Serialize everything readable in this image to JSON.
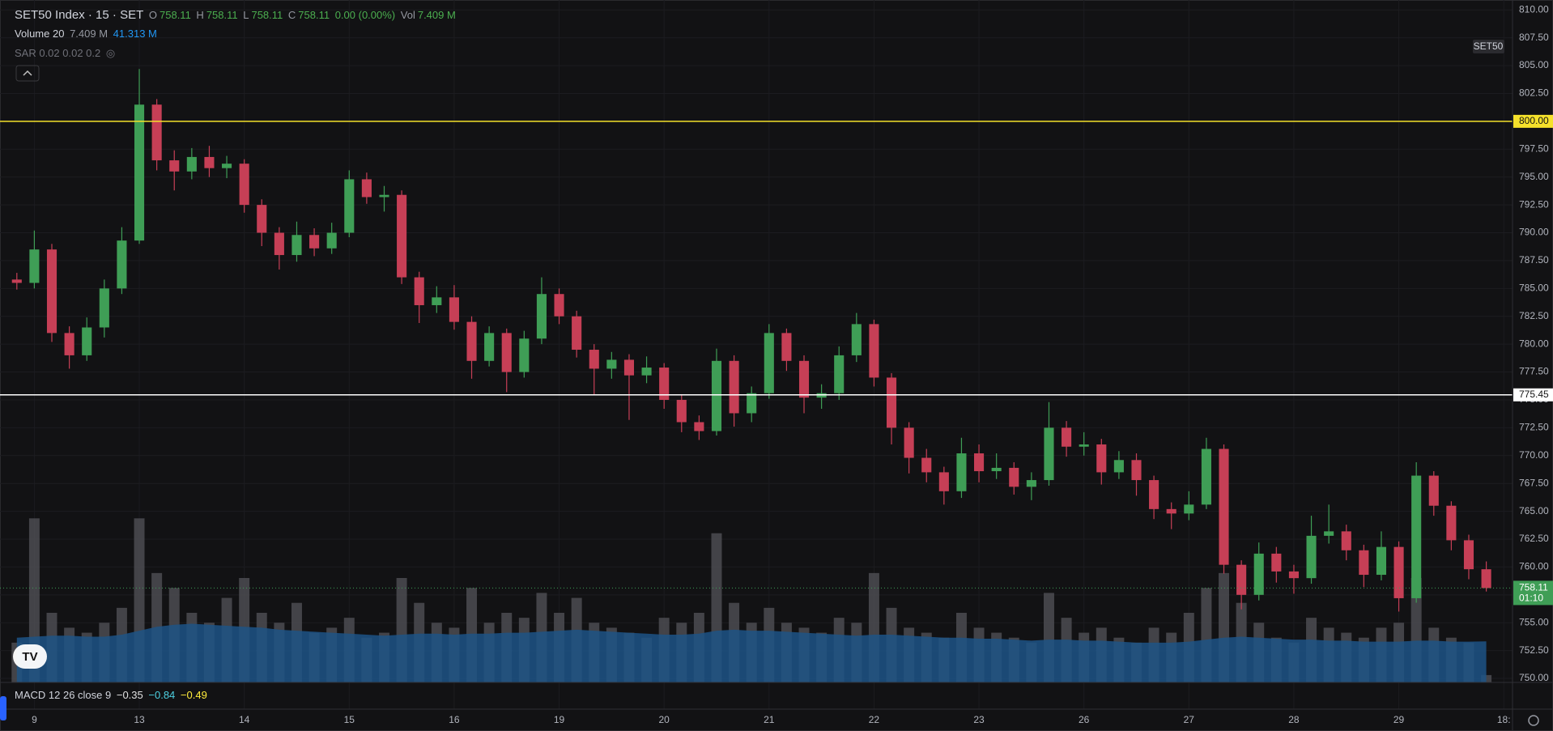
{
  "chart_data": {
    "type": "candlestick",
    "title": "SET50 Index · 15 · SET",
    "ohlc_labels": [
      "O",
      "H",
      "L",
      "C"
    ],
    "ohlc_values": [
      758.11,
      758.11,
      758.11,
      758.11
    ],
    "change": "0.00 (0.00%)",
    "vol_label": "Vol",
    "vol_value": "7.409 M",
    "indicators": [
      {
        "name": "Volume 20",
        "values": [
          "7.409 M",
          "41.313 M"
        ]
      },
      {
        "name": "SAR 0.02 0.02 0.2",
        "values": []
      }
    ],
    "macd": {
      "name": "MACD 12 26 close 9",
      "values": [
        "−0.35",
        "−0.84",
        "−0.49"
      ]
    },
    "badge": "SET50",
    "up_color": "#3f9e56",
    "down_color": "#c63f56",
    "volume_color": "#505055",
    "volume_ma_color": "#1d5486",
    "grid": true,
    "ylim": [
      749.64,
      810.89
    ],
    "yticks": [
      {
        "value": 750,
        "label": "750.00"
      },
      {
        "value": 752.5,
        "label": "752.50"
      },
      {
        "value": 755,
        "label": "755.00"
      },
      {
        "value": 757.5,
        "label": "757.50"
      },
      {
        "value": 760,
        "label": "760.00"
      },
      {
        "value": 762.5,
        "label": "762.50"
      },
      {
        "value": 765,
        "label": "765.00"
      },
      {
        "value": 767.5,
        "label": "767.50"
      },
      {
        "value": 770,
        "label": "770.00"
      },
      {
        "value": 772.5,
        "label": "772.50"
      },
      {
        "value": 775,
        "label": "775.00"
      },
      {
        "value": 777.5,
        "label": "777.50"
      },
      {
        "value": 780,
        "label": "780.00"
      },
      {
        "value": 782.5,
        "label": "782.50"
      },
      {
        "value": 785,
        "label": "785.00"
      },
      {
        "value": 787.5,
        "label": "787.50"
      },
      {
        "value": 790,
        "label": "790.00"
      },
      {
        "value": 792.5,
        "label": "792.50"
      },
      {
        "value": 795,
        "label": "795.00"
      },
      {
        "value": 797.5,
        "label": "797.50"
      },
      {
        "value": 800,
        "label": "800.00"
      },
      {
        "value": 802.5,
        "label": "802.50"
      },
      {
        "value": 805,
        "label": "805.00"
      },
      {
        "value": 807.5,
        "label": "807.50"
      },
      {
        "value": 810,
        "label": "810.00"
      }
    ],
    "xlim": [
      -0.5,
      85.5
    ],
    "xticks": [
      {
        "value": 1,
        "label": "9"
      },
      {
        "value": 7,
        "label": "13"
      },
      {
        "value": 13,
        "label": "14"
      },
      {
        "value": 19,
        "label": "15"
      },
      {
        "value": 25,
        "label": "16"
      },
      {
        "value": 31,
        "label": "19"
      },
      {
        "value": 37,
        "label": "20"
      },
      {
        "value": 43,
        "label": "21"
      },
      {
        "value": 49,
        "label": "22"
      },
      {
        "value": 55,
        "label": "23"
      },
      {
        "value": 61,
        "label": "26"
      },
      {
        "value": 67,
        "label": "27"
      },
      {
        "value": 73,
        "label": "28"
      },
      {
        "value": 79,
        "label": "29"
      },
      {
        "value": 85,
        "label": "18:"
      }
    ],
    "hlines": [
      {
        "value": 800,
        "label": "800.00",
        "color": "#f5e12b"
      },
      {
        "value": 775.45,
        "label": "775.45",
        "color": "#ffffff"
      }
    ],
    "last_price": {
      "value": 758.11,
      "label": "758.11",
      "countdown": "01:10",
      "color": "#3f9e56"
    },
    "open": [
      785.8,
      785.5,
      788.5,
      781,
      779,
      781.5,
      785,
      789.3,
      801.5,
      796.5,
      795.5,
      796.8,
      795.8,
      796.2,
      792.5,
      790,
      788,
      789.8,
      788.6,
      790,
      794.8,
      793.2,
      793.4,
      786,
      783.5,
      784.2,
      782,
      778.5,
      781,
      777.5,
      780.5,
      784.5,
      782.5,
      779.5,
      777.8,
      778.6,
      777.2,
      777.9,
      775,
      773,
      772.2,
      778.5,
      773.8,
      775.6,
      781,
      778.5,
      775.2,
      775.6,
      779,
      781.8,
      777,
      772.5,
      769.8,
      768.5,
      766.8,
      770.2,
      768.6,
      768.9,
      767.2,
      767.8,
      772.5,
      770.8,
      771,
      768.5,
      769.6,
      767.8,
      765.2,
      764.8,
      765.6,
      770.6,
      760.2,
      757.5,
      761.2,
      759.6,
      759,
      762.8,
      763.2,
      761.5,
      759.3,
      761.8,
      757.2,
      768.2,
      765.5,
      762.4,
      759.8
    ],
    "high": [
      786.4,
      790.2,
      789,
      781.6,
      782.4,
      785.8,
      790.5,
      804.7,
      802,
      797.4,
      797.6,
      797.8,
      796.9,
      796.6,
      793,
      790.5,
      791,
      790.4,
      790.9,
      795.6,
      795.4,
      794.2,
      793.8,
      786.5,
      785.2,
      785.3,
      782.5,
      781.6,
      781.4,
      781.2,
      786,
      785,
      783,
      780,
      779.3,
      779.1,
      778.9,
      778.3,
      775.5,
      773.6,
      779.6,
      779,
      776.2,
      781.8,
      781.4,
      779,
      776.4,
      779.8,
      782.8,
      782.2,
      777.4,
      773,
      770.6,
      769,
      771.6,
      771,
      770.2,
      769.4,
      768.5,
      774.8,
      773.1,
      772.1,
      771.5,
      770.4,
      770.2,
      768.2,
      765.8,
      766.8,
      771.6,
      771,
      760.6,
      762.2,
      761.8,
      760.2,
      764.6,
      765.6,
      763.8,
      762,
      763.2,
      762.3,
      769.4,
      768.6,
      765.9,
      762.9,
      760.5
    ],
    "low": [
      784.9,
      785,
      780.2,
      777.8,
      778.5,
      780.6,
      784.5,
      789,
      795.6,
      793.8,
      794.8,
      795,
      794.9,
      791.8,
      788.8,
      786.7,
      787.4,
      787.9,
      788.1,
      789.6,
      792.6,
      791.9,
      785.4,
      781.9,
      782.8,
      781.3,
      776.9,
      778,
      775.7,
      777,
      780,
      781.8,
      778.8,
      775.4,
      776.9,
      773.2,
      776.5,
      774.2,
      772.1,
      771.4,
      771.8,
      772.6,
      773,
      775.1,
      777.6,
      773.8,
      774.2,
      775,
      778.4,
      776.2,
      771,
      768.4,
      767.6,
      765.6,
      766.2,
      767.6,
      767.9,
      766.5,
      766,
      767.3,
      769.9,
      770,
      767.4,
      767.9,
      766.4,
      764.3,
      763.4,
      764.2,
      765.2,
      759.4,
      756.2,
      757,
      758.6,
      757.6,
      758.5,
      762.1,
      760.6,
      758.2,
      758.8,
      756,
      756.8,
      764.6,
      761.5,
      758.9,
      757.8
    ],
    "close": [
      785.5,
      788.5,
      781,
      779,
      781.5,
      785,
      789.3,
      801.5,
      796.5,
      795.5,
      796.8,
      795.8,
      796.2,
      792.5,
      790,
      788,
      789.8,
      788.6,
      790,
      794.8,
      793.2,
      793.4,
      786,
      783.5,
      784.2,
      782,
      778.5,
      781,
      777.5,
      780.5,
      784.5,
      782.5,
      779.5,
      777.8,
      778.6,
      777.2,
      777.9,
      775,
      773,
      772.2,
      778.5,
      773.8,
      775.6,
      781,
      778.5,
      775.2,
      775.6,
      779,
      781.8,
      777,
      772.5,
      769.8,
      768.5,
      766.8,
      770.2,
      768.6,
      768.9,
      767.2,
      767.8,
      772.5,
      770.8,
      771,
      768.5,
      769.6,
      767.8,
      765.2,
      764.8,
      765.6,
      770.6,
      760.2,
      757.5,
      761.2,
      759.6,
      759,
      762.8,
      763.2,
      761.5,
      759.3,
      761.8,
      757.2,
      768.2,
      765.5,
      762.4,
      759.8,
      758.11
    ],
    "volume_ylim": [
      0,
      175
    ],
    "volume": [
      40,
      165,
      70,
      55,
      50,
      60,
      75,
      165,
      110,
      95,
      70,
      60,
      85,
      105,
      70,
      60,
      80,
      50,
      55,
      65,
      45,
      50,
      105,
      80,
      60,
      55,
      95,
      60,
      70,
      65,
      90,
      70,
      85,
      60,
      55,
      50,
      45,
      65,
      60,
      70,
      150,
      80,
      60,
      75,
      60,
      55,
      50,
      65,
      60,
      110,
      75,
      55,
      50,
      45,
      70,
      55,
      50,
      45,
      40,
      90,
      65,
      50,
      55,
      45,
      40,
      55,
      50,
      70,
      95,
      110,
      80,
      60,
      45,
      40,
      65,
      55,
      50,
      45,
      55,
      60,
      105,
      55,
      45,
      40,
      7.409
    ],
    "volume_ma": [
      45,
      46,
      47,
      47,
      46,
      46,
      48,
      52,
      56,
      58,
      59,
      58,
      57,
      56,
      55,
      53,
      52,
      51,
      50,
      49,
      48,
      47,
      48,
      49,
      49,
      48,
      49,
      49,
      50,
      50,
      51,
      52,
      53,
      52,
      51,
      50,
      49,
      48,
      48,
      49,
      52,
      53,
      52,
      52,
      51,
      50,
      49,
      48,
      47,
      48,
      48,
      47,
      46,
      45,
      45,
      44,
      44,
      43,
      42,
      43,
      43,
      42,
      42,
      41,
      40,
      40,
      40,
      41,
      43,
      45,
      46,
      45,
      44,
      43,
      43,
      42,
      42,
      41,
      41,
      41,
      42,
      42,
      41,
      41,
      41.313
    ]
  }
}
